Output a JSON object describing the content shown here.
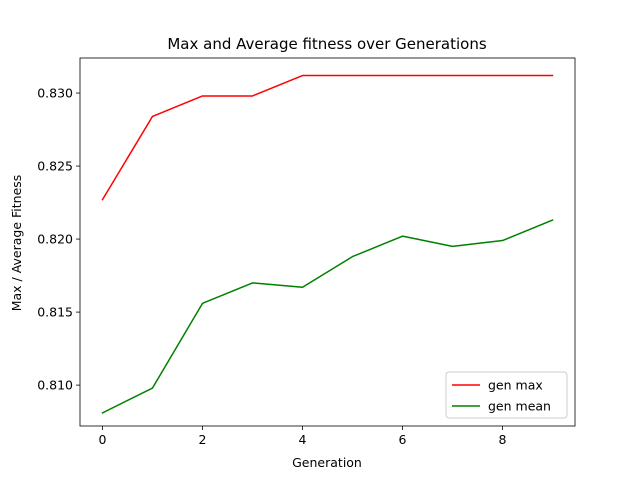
{
  "chart_data": {
    "type": "line",
    "title": "Max and Average fitness over Generations",
    "xlabel": "Generation",
    "ylabel": "Max / Average Fitness",
    "x": [
      0,
      1,
      2,
      3,
      4,
      5,
      6,
      7,
      8,
      9
    ],
    "xlim": [
      -0.45,
      9.45
    ],
    "ylim": [
      0.8072,
      0.8324
    ],
    "xticks": [
      0,
      2,
      4,
      6,
      8
    ],
    "xtick_labels": [
      "0",
      "2",
      "4",
      "6",
      "8"
    ],
    "yticks": [
      0.81,
      0.815,
      0.82,
      0.825,
      0.83
    ],
    "ytick_labels": [
      "0.810",
      "0.815",
      "0.820",
      "0.825",
      "0.830"
    ],
    "grid": false,
    "legend_position": "lower-right",
    "series": [
      {
        "name": "gen max",
        "color": "#ff0000",
        "values": [
          0.8227,
          0.8284,
          0.8298,
          0.8298,
          0.8312,
          0.8312,
          0.8312,
          0.8312,
          0.8312,
          0.8312
        ]
      },
      {
        "name": "gen mean",
        "color": "#008000",
        "values": [
          0.8081,
          0.8098,
          0.8156,
          0.817,
          0.8167,
          0.8188,
          0.8202,
          0.8195,
          0.8199,
          0.8213
        ]
      }
    ]
  }
}
